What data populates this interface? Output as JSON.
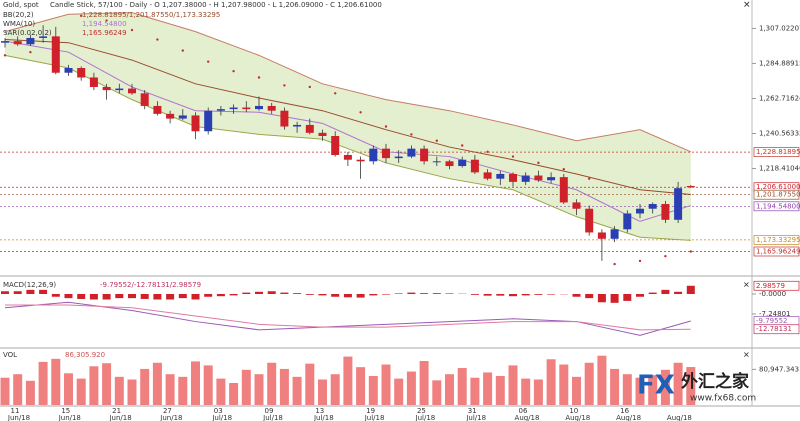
{
  "chart_data": [
    {
      "type": "candlestick",
      "title": "Gold, spot",
      "subtitle": "Candle Stick, 57/100 - Daily - O 1,207.38000 - H 1,207.98000 - L 1,206.09000 - C 1,206.61000",
      "up_color": "#2b3fb5",
      "down_color": "#d0202a",
      "open": [
        1298,
        1299,
        1297,
        1301,
        1302,
        1279,
        1282,
        1276,
        1270,
        1268,
        1269,
        1266,
        1258,
        1253,
        1250,
        1252,
        1242,
        1255,
        1256,
        1257,
        1256,
        1258,
        1255,
        1245,
        1246,
        1241,
        1239,
        1227,
        1224,
        1223,
        1231,
        1225,
        1226,
        1231,
        1223,
        1223,
        1220,
        1224,
        1216,
        1212,
        1215,
        1210,
        1214,
        1211,
        1213,
        1197,
        1193,
        1178,
        1174,
        1180,
        1190,
        1193,
        1196,
        1186,
        1207.38
      ],
      "high": [
        1301,
        1302,
        1303,
        1309,
        1308,
        1284,
        1283,
        1279,
        1272,
        1272,
        1272,
        1268,
        1261,
        1255,
        1256,
        1254,
        1257,
        1258,
        1259,
        1261,
        1264,
        1260,
        1257,
        1248,
        1250,
        1243,
        1242,
        1229,
        1226,
        1233,
        1234,
        1230,
        1233,
        1233,
        1226,
        1224,
        1226,
        1227,
        1218,
        1217,
        1216,
        1216,
        1217,
        1216,
        1215,
        1199,
        1195,
        1180,
        1182,
        1192,
        1196,
        1197,
        1198,
        1210,
        1207.98
      ],
      "low": [
        1295,
        1296,
        1296,
        1298,
        1278,
        1277,
        1274,
        1268,
        1262,
        1266,
        1265,
        1256,
        1252,
        1247,
        1249,
        1237,
        1240,
        1252,
        1253,
        1254,
        1255,
        1253,
        1243,
        1241,
        1240,
        1236,
        1226,
        1220,
        1212,
        1221,
        1222,
        1222,
        1225,
        1221,
        1220,
        1218,
        1219,
        1215,
        1211,
        1208,
        1207,
        1208,
        1210,
        1209,
        1196,
        1189,
        1176,
        1160,
        1172,
        1178,
        1187,
        1190,
        1184,
        1184,
        1206.09
      ],
      "close": [
        1299,
        1297,
        1301,
        1302,
        1279,
        1282,
        1276,
        1270,
        1268,
        1269,
        1266,
        1258,
        1253,
        1250,
        1252,
        1242,
        1255,
        1256,
        1257,
        1256,
        1258,
        1255,
        1245,
        1246,
        1241,
        1239,
        1227,
        1224,
        1223,
        1231,
        1225,
        1226,
        1231,
        1223,
        1223,
        1220,
        1224,
        1216,
        1212,
        1215,
        1210,
        1214,
        1211,
        1213,
        1197,
        1193,
        1178,
        1174,
        1180,
        1190,
        1193,
        1196,
        1186,
        1206,
        1206.61
      ],
      "ylim": [
        1153,
        1325
      ],
      "yticks": [
        {
          "value": 1307.02207,
          "label": "1,307.02207"
        },
        {
          "value": 1284.88915,
          "label": "1,284.88915"
        },
        {
          "value": 1262.71624,
          "label": "1,262.71624"
        },
        {
          "value": 1240.56332,
          "label": "1,240.56332"
        },
        {
          "value": 1218.4104,
          "label": "1,218.41040"
        }
      ],
      "band_color": "#e3efcf",
      "indicators": [
        {
          "name": "BB(20,2)",
          "readout": "1,228.81895/1,201.87550/1,173.33295",
          "color": "#9a4a2a",
          "lines": [
            {
              "color": "#c77b66",
              "x": [
                0,
                5,
                10,
                15,
                20,
                25,
                30,
                35,
                40,
                45,
                50,
                54
              ],
              "values": [
                1305,
                1316,
                1317,
                1305,
                1290,
                1272,
                1262,
                1255,
                1246,
                1236,
                1243,
                1229
              ]
            },
            {
              "color": "#9a4a2a",
              "x": [
                0,
                5,
                10,
                15,
                20,
                25,
                30,
                35,
                40,
                45,
                50,
                54
              ],
              "values": [
                1300,
                1298,
                1287,
                1272,
                1263,
                1255,
                1243,
                1232,
                1224,
                1215,
                1205,
                1202
              ]
            },
            {
              "color": "#9ea54a",
              "x": [
                0,
                5,
                10,
                15,
                20,
                25,
                30,
                35,
                40,
                45,
                50,
                54
              ],
              "values": [
                1290,
                1282,
                1262,
                1245,
                1240,
                1237,
                1222,
                1212,
                1205,
                1188,
                1175,
                1173
              ]
            }
          ]
        },
        {
          "name": "WMA(10)",
          "readout": "1,194.54800",
          "color": "#b070d0",
          "x": [
            0,
            5,
            10,
            15,
            20,
            25,
            30,
            35,
            40,
            45,
            50,
            54
          ],
          "values": [
            1299,
            1292,
            1270,
            1255,
            1254,
            1247,
            1229,
            1226,
            1215,
            1205,
            1185,
            1195
          ]
        },
        {
          "name": "SAR(0.02,0.2)",
          "readout": "1,165.96249",
          "color": "#c03030",
          "x": [
            0,
            2,
            4,
            6,
            8,
            10,
            12,
            14,
            16,
            18,
            20,
            22,
            24,
            26,
            28,
            30,
            32,
            34,
            36,
            38,
            40,
            42,
            44,
            46,
            48,
            50,
            52,
            54
          ],
          "values": [
            1290,
            1292,
            1294,
            1315,
            1312,
            1306,
            1300,
            1293,
            1286,
            1280,
            1276,
            1271,
            1270,
            1266,
            1254,
            1245,
            1240,
            1236,
            1233,
            1229,
            1226,
            1222,
            1218,
            1212,
            1158,
            1160,
            1163,
            1165.96249
          ]
        }
      ],
      "markers": [
        {
          "value": 1228.81895,
          "label": "1,228.81895",
          "color": "#c0392b"
        },
        {
          "value": 1206.61,
          "label": "1,206.61000",
          "color": "#d0202a"
        },
        {
          "value": 1201.8755,
          "label": "1,201.87550",
          "color": "#9a4a2a"
        },
        {
          "value": 1194.548,
          "label": "1,194.54800",
          "color": "#8e44ad"
        },
        {
          "value": 1173.33295,
          "label": "1,173.33295",
          "color": "#c98a1a"
        },
        {
          "value": 1165.96249,
          "label": "1,165.96249",
          "color": "#c03030"
        }
      ],
      "x_labels": [
        [
          "11",
          "Jun/18"
        ],
        [
          "15",
          "Jun/18"
        ],
        [
          "21",
          "Jun/18"
        ],
        [
          "27",
          "Jun/18"
        ],
        [
          "03",
          "Jul/18"
        ],
        [
          "09",
          "Jul/18"
        ],
        [
          "13",
          "Jul/18"
        ],
        [
          "19",
          "Jul/18"
        ],
        [
          "25",
          "Jul/18"
        ],
        [
          "31",
          "Jul/18"
        ],
        [
          "06",
          "Aug/18"
        ],
        [
          "10",
          "Aug/18"
        ],
        [
          "16",
          "Aug/18"
        ],
        [
          "",
          "Aug/18"
        ]
      ]
    },
    {
      "type": "macd",
      "title": "MACD(12,26,9)",
      "readout": "-9.79552/-12.78131/2.98579",
      "hist_color": "#d0202a",
      "values": [
        1,
        1,
        1.5,
        1.5,
        -1,
        -1.5,
        -1.8,
        -2,
        -2,
        -1.5,
        -1.5,
        -1.8,
        -2,
        -2,
        -1.5,
        -2,
        -1,
        -0.8,
        -0.5,
        0.5,
        0.8,
        1,
        0.5,
        0.3,
        -0.3,
        -0.5,
        -1,
        -1.2,
        -1.3,
        -0.5,
        -0.2,
        0.2,
        0.5,
        0.3,
        0.3,
        0.2,
        0.1,
        -0.3,
        -0.6,
        -0.6,
        -0.8,
        -0.5,
        -0.3,
        -0.2,
        -0.1,
        -1,
        -1.5,
        -3,
        -3.2,
        -2.5,
        -1,
        0.5,
        1.5,
        0.8,
        2.98579
      ],
      "series": [
        {
          "color": "#9b59b6",
          "x": [
            0,
            5,
            10,
            15,
            20,
            25,
            30,
            35,
            40,
            45,
            50,
            54
          ],
          "values": [
            -5,
            -3,
            -6,
            -10,
            -13,
            -12,
            -11,
            -10,
            -9,
            -10,
            -15,
            -9.79552
          ]
        },
        {
          "color": "#e07aa0",
          "x": [
            0,
            5,
            10,
            15,
            20,
            25,
            30,
            35,
            40,
            45,
            50,
            54
          ],
          "values": [
            -4,
            -4,
            -5,
            -8,
            -11,
            -12,
            -12,
            -11,
            -10,
            -10,
            -13,
            -12.78131
          ]
        }
      ],
      "ylim": [
        -18.5,
        5.8
      ],
      "yticks": [
        {
          "value": 0,
          "label": "-0.0000"
        },
        {
          "value": -7.24801,
          "label": "-7.24801"
        }
      ],
      "markers": [
        {
          "value": 2.98579,
          "label": "2.98579",
          "color": "#d0202a"
        },
        {
          "value": -9.79552,
          "label": "-9.79552",
          "color": "#9b59b6"
        },
        {
          "value": -12.78131,
          "label": "-12.78131",
          "color": "#c03060"
        }
      ]
    },
    {
      "type": "volume",
      "title": "VOL",
      "readout": "86,305.920",
      "color": "#f08080",
      "values": [
        62000,
        70000,
        55000,
        98000,
        105000,
        72000,
        60000,
        88000,
        95000,
        64000,
        58000,
        82000,
        96000,
        70000,
        64000,
        99000,
        90000,
        60000,
        50000,
        80000,
        70000,
        96000,
        82000,
        64000,
        94000,
        58000,
        70000,
        110000,
        86000,
        66000,
        92000,
        60000,
        76000,
        100000,
        56000,
        70000,
        84000,
        62000,
        74000,
        66000,
        90000,
        60000,
        58000,
        104000,
        92000,
        64000,
        96000,
        112000,
        82000,
        70000,
        62000,
        68000,
        80000,
        96000,
        86305.92
      ],
      "ylim": [
        0,
        125000
      ],
      "yticks": [
        {
          "value": 80947.343,
          "label": "80,947.343"
        }
      ]
    }
  ],
  "watermark": {
    "brand": "FX",
    "name": "外汇之家",
    "url": "www.fx68.com"
  }
}
